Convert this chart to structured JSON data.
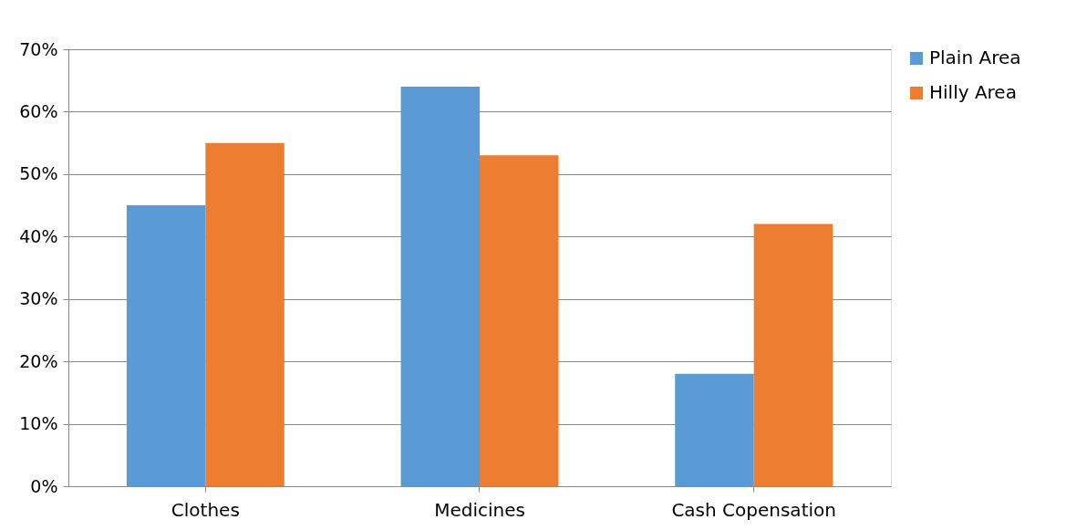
{
  "chart_data": {
    "type": "bar",
    "categories": [
      "Clothes",
      "Medicines",
      "Cash Copensation"
    ],
    "series": [
      {
        "name": "Plain Area",
        "color": "#5b9bd5",
        "values": [
          45,
          64,
          18
        ]
      },
      {
        "name": "Hilly Area",
        "color": "#ed7d31",
        "values": [
          55,
          53,
          42
        ]
      }
    ],
    "ylim": [
      0,
      70
    ],
    "yticks": [
      {
        "value": 0,
        "label": "0%"
      },
      {
        "value": 10,
        "label": "10%"
      },
      {
        "value": 20,
        "label": "20%"
      },
      {
        "value": 30,
        "label": "30%"
      },
      {
        "value": 40,
        "label": "40%"
      },
      {
        "value": 50,
        "label": "50%"
      },
      {
        "value": 60,
        "label": "60%"
      },
      {
        "value": 70,
        "label": "70%"
      }
    ],
    "grid": "y",
    "legend": "right"
  }
}
